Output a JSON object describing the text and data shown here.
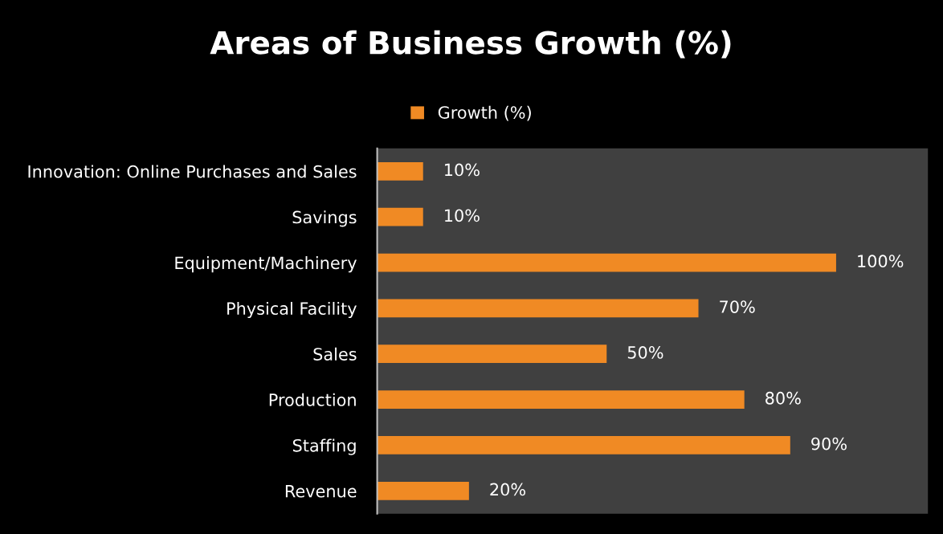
{
  "chart_data": {
    "type": "bar",
    "orientation": "horizontal",
    "title": "Areas of Business Growth (%)",
    "categories": [
      "Innovation: Online Purchases and Sales",
      "Savings",
      "Equipment/Machinery",
      "Physical Facility",
      "Sales",
      "Production",
      "Staffing",
      "Revenue"
    ],
    "series": [
      {
        "name": "Growth (%)",
        "color": "#f08a24",
        "values": [
          10,
          10,
          100,
          70,
          50,
          80,
          90,
          20
        ],
        "value_labels": [
          "10%",
          "10%",
          "100%",
          "70%",
          "50%",
          "80%",
          "90%",
          "20%"
        ]
      }
    ],
    "xlim": [
      0,
      120
    ],
    "tick_labels": "y",
    "grid": false,
    "legend": "top"
  }
}
